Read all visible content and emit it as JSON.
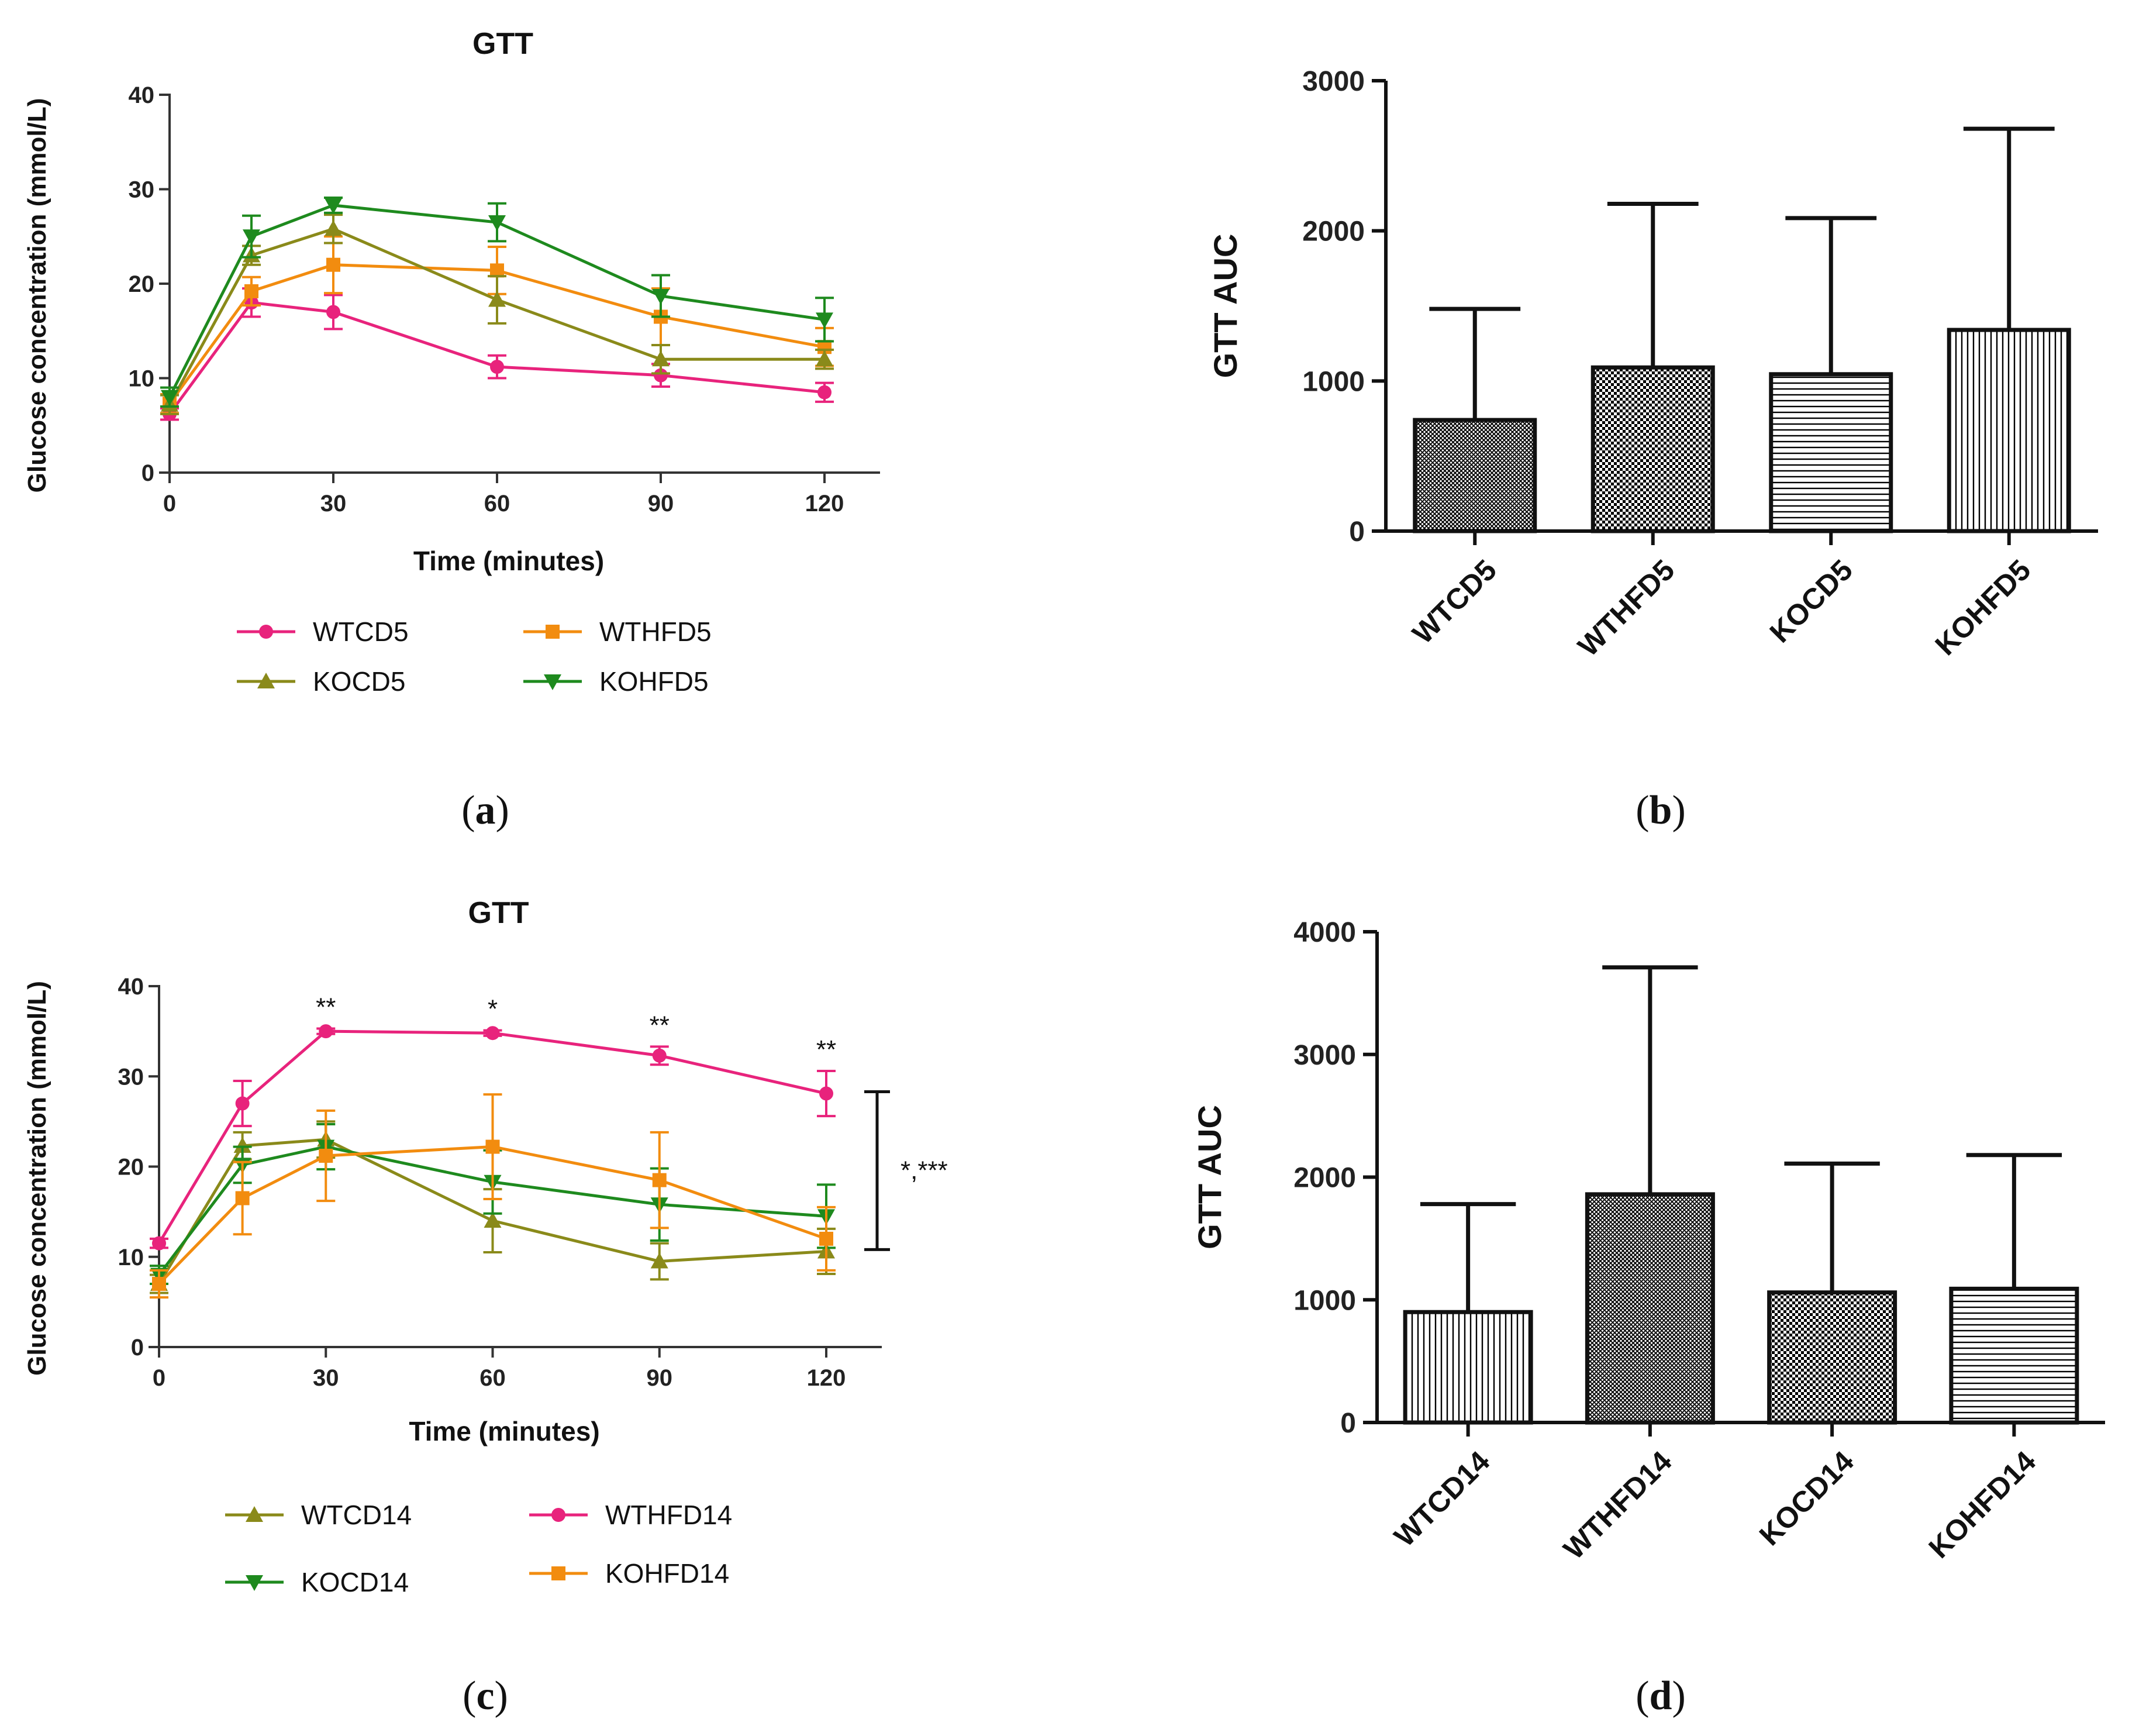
{
  "chart_data": [
    {
      "panel": "a",
      "panel_label": [
        "(",
        "a",
        ")"
      ],
      "type": "line",
      "title": "GTT",
      "xlabel": "Time (minutes)",
      "ylabel": "Glucose concentration (mmol/L)",
      "xlim": [
        0,
        120
      ],
      "ylim": [
        0,
        40
      ],
      "xticks": [
        0,
        30,
        60,
        90,
        120
      ],
      "yticks": [
        0,
        10,
        20,
        30,
        40
      ],
      "x": [
        0,
        15,
        30,
        60,
        90,
        120
      ],
      "legend_layout": "below, 2 columns",
      "series": [
        {
          "name": "WTCD5",
          "color": "#e8237c",
          "marker": "circle",
          "values": [
            6.2,
            18,
            17,
            11.2,
            10.3,
            8.5
          ],
          "errors": [
            0.6,
            1.5,
            1.8,
            1.2,
            1.2,
            1.0
          ]
        },
        {
          "name": "WTHFD5",
          "color": "#f28c0f",
          "marker": "square",
          "values": [
            7.3,
            19.2,
            22,
            21.4,
            16.5,
            13.3
          ],
          "errors": [
            1.0,
            1.5,
            3.0,
            2.5,
            3.0,
            2.0
          ]
        },
        {
          "name": "KOCD5",
          "color": "#8a8a1a",
          "marker": "triangle-up",
          "values": [
            7.2,
            23,
            25.8,
            18.3,
            12,
            12
          ],
          "errors": [
            1.0,
            1.0,
            1.5,
            2.5,
            1.5,
            1.0
          ]
        },
        {
          "name": "KOHFD5",
          "color": "#1e8a1e",
          "marker": "triangle-down",
          "values": [
            8,
            25,
            28.3,
            26.5,
            18.7,
            16.2
          ],
          "errors": [
            1.0,
            2.2,
            0.8,
            2.0,
            2.2,
            2.3
          ]
        }
      ]
    },
    {
      "panel": "b",
      "panel_label": [
        "(",
        "b",
        ")"
      ],
      "type": "bar",
      "title": "",
      "ylabel": "GTT AUC",
      "ylim": [
        0,
        3000
      ],
      "yticks": [
        0,
        1000,
        2000,
        3000
      ],
      "categories": [
        "WTCD5",
        "WTHFD5",
        "KOCD5",
        "KOHFD5"
      ],
      "values": [
        740,
        1090,
        1045,
        1340
      ],
      "errors": [
        740,
        1090,
        1040,
        1340
      ],
      "patterns": [
        "crosshatch-fine",
        "checker",
        "horizontal-lines",
        "vertical-lines"
      ]
    },
    {
      "panel": "c",
      "panel_label": [
        "(",
        "c",
        ")"
      ],
      "type": "line",
      "title": "GTT",
      "xlabel": "Time (minutes)",
      "ylabel": "Glucose concentration (mmol/L)",
      "xlim": [
        0,
        120
      ],
      "ylim": [
        0,
        40
      ],
      "xticks": [
        0,
        30,
        60,
        90,
        120
      ],
      "yticks": [
        0,
        10,
        20,
        30,
        40
      ],
      "x": [
        0,
        15,
        30,
        60,
        90,
        120
      ],
      "legend_layout": "below, 2 columns",
      "series": [
        {
          "name": "WTCD14",
          "color": "#8a8a1a",
          "marker": "triangle-up",
          "values": [
            7,
            22.3,
            23,
            14,
            9.5,
            10.6
          ],
          "errors": [
            1.0,
            1.5,
            2.0,
            3.5,
            2.0,
            2.5
          ]
        },
        {
          "name": "WTHFD14",
          "color": "#e8237c",
          "marker": "circle",
          "values": [
            11.5,
            27,
            35,
            34.8,
            32.3,
            28.1
          ],
          "errors": [
            0.5,
            2.5,
            0.3,
            0.3,
            1.0,
            2.5
          ]
        },
        {
          "name": "KOCD14",
          "color": "#1e8a1e",
          "marker": "triangle-down",
          "values": [
            8,
            20.2,
            22.2,
            18.3,
            15.8,
            14.5
          ],
          "errors": [
            1.0,
            2.0,
            2.5,
            3.5,
            4.0,
            3.5
          ]
        },
        {
          "name": "KOHFD14",
          "color": "#f28c0f",
          "marker": "square",
          "values": [
            7,
            16.5,
            21.2,
            22.2,
            18.5,
            12
          ],
          "errors": [
            1.5,
            4.0,
            5.0,
            5.8,
            5.3,
            3.5
          ]
        }
      ],
      "significance": [
        {
          "x": 30,
          "label": "**"
        },
        {
          "x": 60,
          "label": "*"
        },
        {
          "x": 90,
          "label": "**"
        },
        {
          "x": 120,
          "label": "**"
        }
      ],
      "bracket": {
        "from": 10.8,
        "to": 28.3,
        "label": "*,***"
      }
    },
    {
      "panel": "d",
      "panel_label": [
        "(",
        "d",
        ")"
      ],
      "type": "bar",
      "title": "",
      "ylabel": "GTT AUC",
      "ylim": [
        0,
        4000
      ],
      "yticks": [
        0,
        1000,
        2000,
        3000,
        4000
      ],
      "categories": [
        "WTCD14",
        "WTHFD14",
        "KOCD14",
        "KOHFD14"
      ],
      "values": [
        900,
        1860,
        1060,
        1090
      ],
      "errors": [
        880,
        1850,
        1050,
        1090
      ],
      "patterns": [
        "vertical-lines",
        "crosshatch-fine",
        "checker",
        "horizontal-lines"
      ]
    }
  ]
}
